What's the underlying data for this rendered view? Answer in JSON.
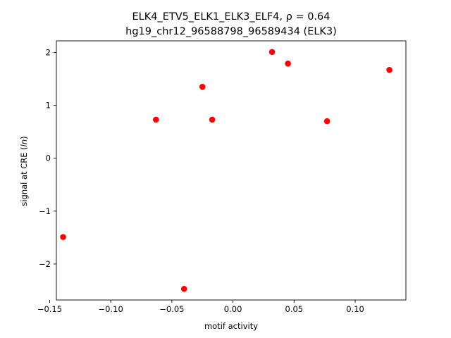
{
  "chart_data": {
    "type": "scatter",
    "title_line1": "ELK4_ETV5_ELK1_ELK3_ELF4, ρ = 0.64",
    "title_line2": "hg19_chr12_96588798_96589434 (ELK3)",
    "xlabel": "motif activity",
    "ylabel": "signal at CRE (ln)",
    "xlim": [
      -0.1445,
      0.1415
    ],
    "ylim": [
      -2.68,
      2.22
    ],
    "xticks": [
      -0.15,
      -0.1,
      -0.05,
      0.0,
      0.05,
      0.1
    ],
    "xtick_labels": [
      "−0.15",
      "−0.10",
      "−0.05",
      "0.00",
      "0.05",
      "0.10"
    ],
    "yticks": [
      -2,
      -1,
      0,
      1,
      2
    ],
    "ytick_labels": [
      "−2",
      "−1",
      "0",
      "1",
      "2"
    ],
    "grid": false,
    "marker_color": "#ff0000",
    "points": [
      {
        "x": -0.139,
        "y": -1.49
      },
      {
        "x": -0.063,
        "y": 0.73
      },
      {
        "x": -0.04,
        "y": -2.47
      },
      {
        "x": -0.025,
        "y": 1.35
      },
      {
        "x": -0.017,
        "y": 0.73
      },
      {
        "x": 0.032,
        "y": 2.01
      },
      {
        "x": 0.045,
        "y": 1.79
      },
      {
        "x": 0.077,
        "y": 0.7
      },
      {
        "x": 0.128,
        "y": 1.67
      }
    ]
  }
}
